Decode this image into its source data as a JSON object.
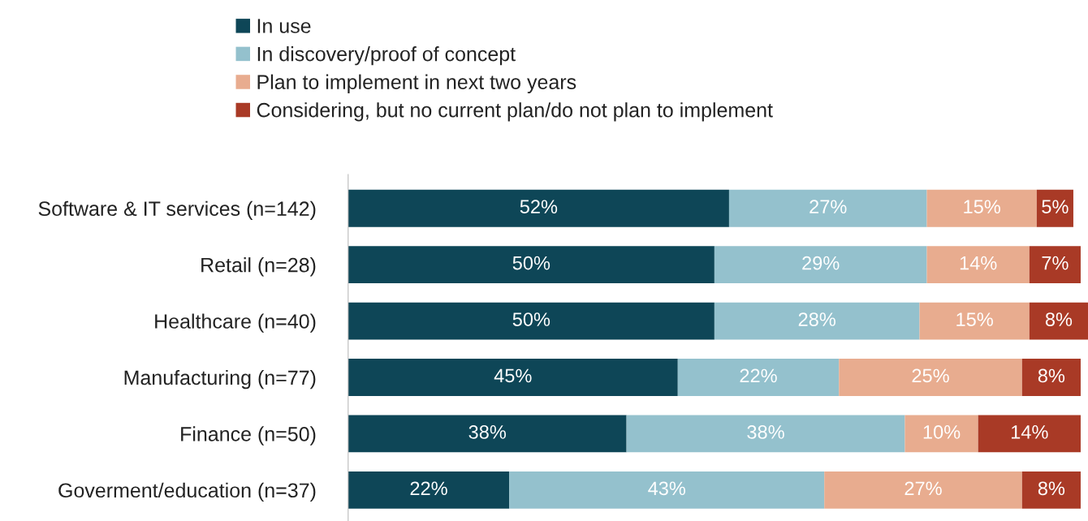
{
  "chart_data": {
    "type": "bar",
    "orientation": "horizontal",
    "stacked": true,
    "legend": "top",
    "grid": false,
    "categories": [
      "Software & IT services (n=142)",
      "Retail (n=28)",
      "Healthcare (n=40)",
      "Manufacturing (n=77)",
      "Finance (n=50)",
      "Goverment/education (n=37)"
    ],
    "series": [
      {
        "name": "In use",
        "color": "#0e4657",
        "values": [
          52,
          50,
          50,
          45,
          38,
          22
        ],
        "value_labels": [
          "52%",
          "50%",
          "50%",
          "45%",
          "38%",
          "22%"
        ]
      },
      {
        "name": "In discovery/proof of concept",
        "color": "#94c1cd",
        "values": [
          27,
          29,
          28,
          22,
          38,
          43
        ],
        "value_labels": [
          "27%",
          "29%",
          "28%",
          "22%",
          "38%",
          "43%"
        ]
      },
      {
        "name": "Plan to implement in next two years",
        "color": "#e8ac8f",
        "values": [
          15,
          14,
          15,
          25,
          10,
          27
        ],
        "value_labels": [
          "15%",
          "14%",
          "15%",
          "25%",
          "10%",
          "27%"
        ]
      },
      {
        "name": "Considering, but no current plan/do not plan to implement",
        "color": "#a93a26",
        "values": [
          5,
          7,
          8,
          8,
          14,
          8
        ],
        "value_labels": [
          "5%",
          "7%",
          "8%",
          "8%",
          "14%",
          "8%"
        ]
      }
    ]
  }
}
